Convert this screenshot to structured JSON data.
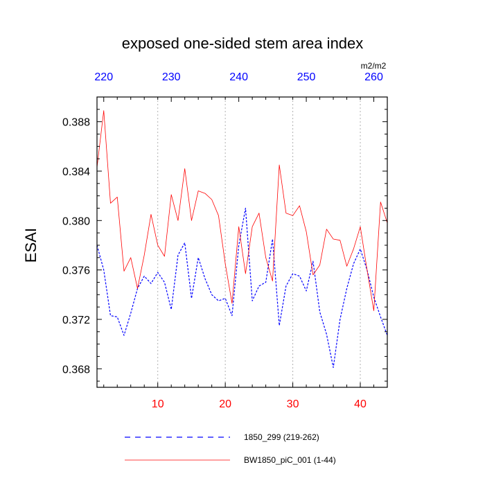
{
  "chart_data": {
    "type": "line",
    "title": "exposed one-sided stem area index",
    "units": "m2/m2",
    "ylabel": "ESAI",
    "xlabel": "",
    "xlim": [
      1,
      44
    ],
    "x2lim": [
      219,
      262
    ],
    "ylim": [
      0.3665,
      0.39
    ],
    "yticks": [
      0.368,
      0.372,
      0.376,
      0.38,
      0.384,
      0.388
    ],
    "ytick_labels": [
      "0.368",
      "0.372",
      "0.376",
      "0.380",
      "0.384",
      "0.388"
    ],
    "xticks": [
      10,
      20,
      30,
      40
    ],
    "xtick_labels": [
      "10",
      "20",
      "30",
      "40"
    ],
    "x2ticks": [
      220,
      230,
      240,
      250,
      260
    ],
    "x2tick_labels": [
      "220",
      "230",
      "240",
      "250",
      "260"
    ],
    "x_tick_color": "#ff0000",
    "x2_tick_color": "#0000ff",
    "grid": "vertical-dotted",
    "x": [
      1,
      2,
      3,
      4,
      5,
      6,
      7,
      8,
      9,
      10,
      11,
      12,
      13,
      14,
      15,
      16,
      17,
      18,
      19,
      20,
      21,
      22,
      23,
      24,
      25,
      26,
      27,
      28,
      29,
      30,
      31,
      32,
      33,
      34,
      35,
      36,
      37,
      38,
      39,
      40,
      41,
      42,
      43,
      44
    ],
    "series": [
      {
        "name": "1850_299 (219-262)",
        "color": "#0000ff",
        "style": "dashed",
        "values": [
          0.378,
          0.376,
          0.3723,
          0.3722,
          0.3707,
          0.3725,
          0.3745,
          0.3755,
          0.3749,
          0.3758,
          0.375,
          0.3728,
          0.3772,
          0.3782,
          0.3737,
          0.377,
          0.3753,
          0.374,
          0.3735,
          0.3737,
          0.3723,
          0.378,
          0.381,
          0.3735,
          0.3747,
          0.375,
          0.3785,
          0.3715,
          0.3747,
          0.3757,
          0.3755,
          0.3743,
          0.3767,
          0.3726,
          0.3708,
          0.3681,
          0.372,
          0.3745,
          0.3765,
          0.3777,
          0.376,
          0.3738,
          0.3722,
          0.3707
        ]
      },
      {
        "name": "BW1850_piC_001 (1-44)",
        "color": "#ff0000",
        "style": "solid",
        "values": [
          0.3843,
          0.3889,
          0.3814,
          0.3819,
          0.3759,
          0.377,
          0.3745,
          0.3772,
          0.3805,
          0.378,
          0.3771,
          0.3821,
          0.38,
          0.3842,
          0.38,
          0.3824,
          0.3822,
          0.3817,
          0.3804,
          0.3765,
          0.3733,
          0.3795,
          0.3757,
          0.3795,
          0.3806,
          0.377,
          0.3751,
          0.3845,
          0.3806,
          0.3804,
          0.3812,
          0.3791,
          0.3756,
          0.3764,
          0.3793,
          0.3785,
          0.3784,
          0.3763,
          0.3777,
          0.3795,
          0.376,
          0.3727,
          0.3815,
          0.3798
        ]
      }
    ],
    "legend": "bottom"
  }
}
